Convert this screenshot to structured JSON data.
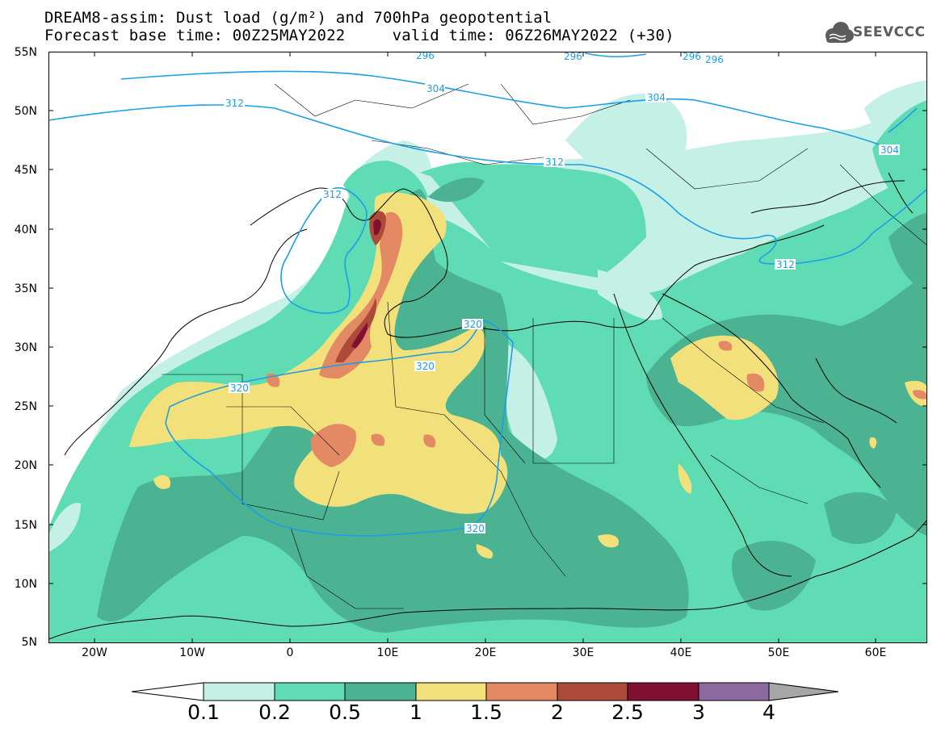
{
  "header": {
    "title_line1": "DREAM8-assim: Dust load (g/m²) and 700hPa geopotential",
    "title_line2": "Forecast base time: 00Z25MAY2022     valid time: 06Z26MAY2022 (+30)"
  },
  "logo": {
    "text": "SEEVCCC",
    "icon": "cloud-icon"
  },
  "axes": {
    "lat_labels": [
      "55N",
      "50N",
      "45N",
      "40N",
      "35N",
      "30N",
      "25N",
      "20N",
      "15N",
      "10N",
      "5N"
    ],
    "lon_labels": [
      "20W",
      "10W",
      "0",
      "10E",
      "20E",
      "30E",
      "40E",
      "50E",
      "60E"
    ]
  },
  "contour_labels": [
    "296",
    "296",
    "296",
    "296",
    "304",
    "304",
    "304",
    "312",
    "312",
    "312",
    "312",
    "320",
    "320",
    "320",
    "320"
  ],
  "colorbar": {
    "labels": [
      "0.1",
      "0.2",
      "0.5",
      "1",
      "1.5",
      "2",
      "2.5",
      "3",
      "4"
    ],
    "colors": [
      "#c4f0e6",
      "#5fdcb4",
      "#4bb391",
      "#f2e07a",
      "#e38a64",
      "#ad4a3a",
      "#800f32",
      "#8c6aa0"
    ],
    "under_color": "#ffffff",
    "over_color": "#a7a7a7"
  },
  "map_colors": {
    "land_background": "#ffffff",
    "coastline": "#000000",
    "isoline": "#1d9ee6"
  }
}
